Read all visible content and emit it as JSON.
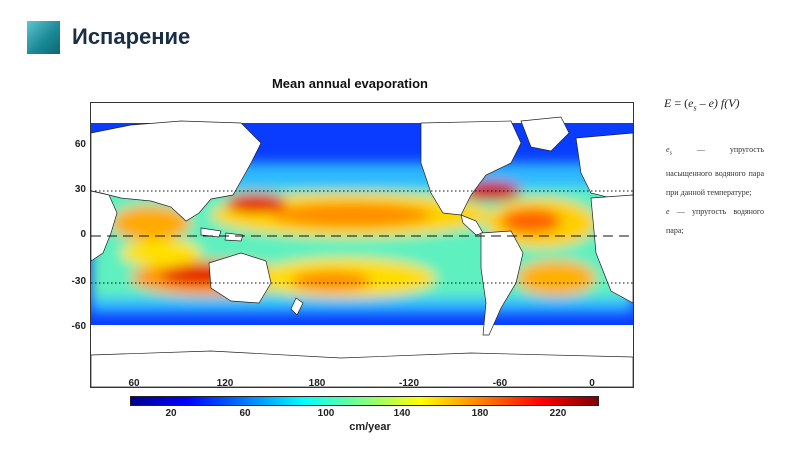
{
  "slide": {
    "title": "Испарение"
  },
  "figure": {
    "title": "Mean annual evaporation",
    "y_ticks": [
      "60",
      "30",
      "0",
      "-30",
      "-60"
    ],
    "x_ticks": [
      "60",
      "120",
      "180",
      "-120",
      "-60",
      "0"
    ],
    "colorbar": {
      "ticks": [
        "20",
        "60",
        "100",
        "140",
        "180",
        "220"
      ],
      "unit": "cm/year",
      "colors": [
        "#00008f",
        "#0000ff",
        "#0080ff",
        "#00ffff",
        "#80ff80",
        "#ffff00",
        "#ff8000",
        "#ff0000",
        "#800000"
      ]
    },
    "reference_lines": {
      "dotted": [
        "30",
        "-30"
      ],
      "dashed": [
        "0"
      ]
    }
  },
  "notes": {
    "formula": "E = (es – e) f(V)",
    "formula_parts": {
      "lhs": "E",
      "eq": " = (",
      "es_base": "e",
      "es_sub": "s",
      "rest": " – e) f(V)"
    },
    "es_symbol": {
      "base": "e",
      "sub": "s"
    },
    "es_text": " — упругость насыщенного водяного пара при данной температуре;",
    "e_symbol": "e",
    "e_text": " — упругость водяного пара;"
  }
}
